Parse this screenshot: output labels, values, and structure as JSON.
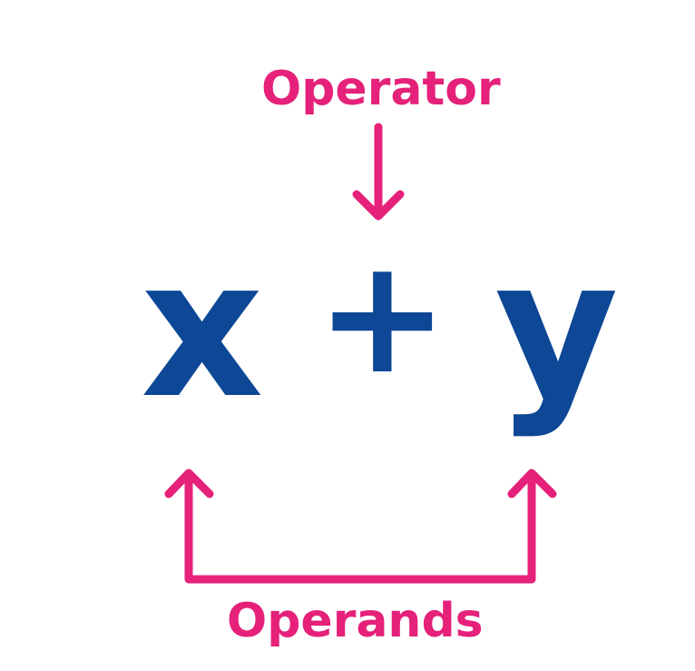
{
  "diagram": {
    "operator_label": "Operator",
    "operands_label": "Operands",
    "expression": {
      "left_operand": "x",
      "operator": "+",
      "right_operand": "y"
    }
  },
  "colors": {
    "accent": "#e5217a",
    "expression": "#0d4796",
    "background": "#ffffff"
  }
}
